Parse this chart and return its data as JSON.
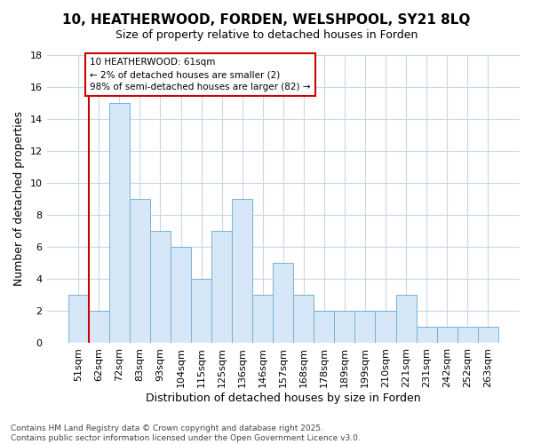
{
  "title_line1": "10, HEATHERWOOD, FORDEN, WELSHPOOL, SY21 8LQ",
  "title_line2": "Size of property relative to detached houses in Forden",
  "xlabel": "Distribution of detached houses by size in Forden",
  "ylabel": "Number of detached properties",
  "bar_values": [
    3,
    2,
    15,
    9,
    7,
    6,
    4,
    7,
    9,
    3,
    5,
    3,
    2,
    2,
    2,
    2,
    3,
    1,
    1,
    1,
    1
  ],
  "bin_labels": [
    "51sqm",
    "62sqm",
    "72sqm",
    "83sqm",
    "93sqm",
    "104sqm",
    "115sqm",
    "125sqm",
    "136sqm",
    "146sqm",
    "157sqm",
    "168sqm",
    "178sqm",
    "189sqm",
    "199sqm",
    "210sqm",
    "221sqm",
    "231sqm",
    "242sqm",
    "252sqm",
    "263sqm"
  ],
  "bar_color": "#d6e8f7",
  "bar_edge_color": "#7ab0d4",
  "grid_color": "#c8d8e8",
  "annotation_text": "10 HEATHERWOOD: 61sqm\n← 2% of detached houses are smaller (2)\n98% of semi-detached houses are larger (82) →",
  "annotation_box_color": "#ffffff",
  "annotation_box_edge_color": "#cc0000",
  "red_line_x": 0.5,
  "footer_text": "Contains HM Land Registry data © Crown copyright and database right 2025.\nContains public sector information licensed under the Open Government Licence v3.0.",
  "ylim": [
    0,
    18
  ],
  "yticks": [
    0,
    2,
    4,
    6,
    8,
    10,
    12,
    14,
    16,
    18
  ],
  "background_color": "#ffffff",
  "title1_fontsize": 11,
  "title2_fontsize": 9,
  "xlabel_fontsize": 9,
  "ylabel_fontsize": 9,
  "tick_fontsize": 8,
  "ann_fontsize": 7.5,
  "footer_fontsize": 6.5
}
